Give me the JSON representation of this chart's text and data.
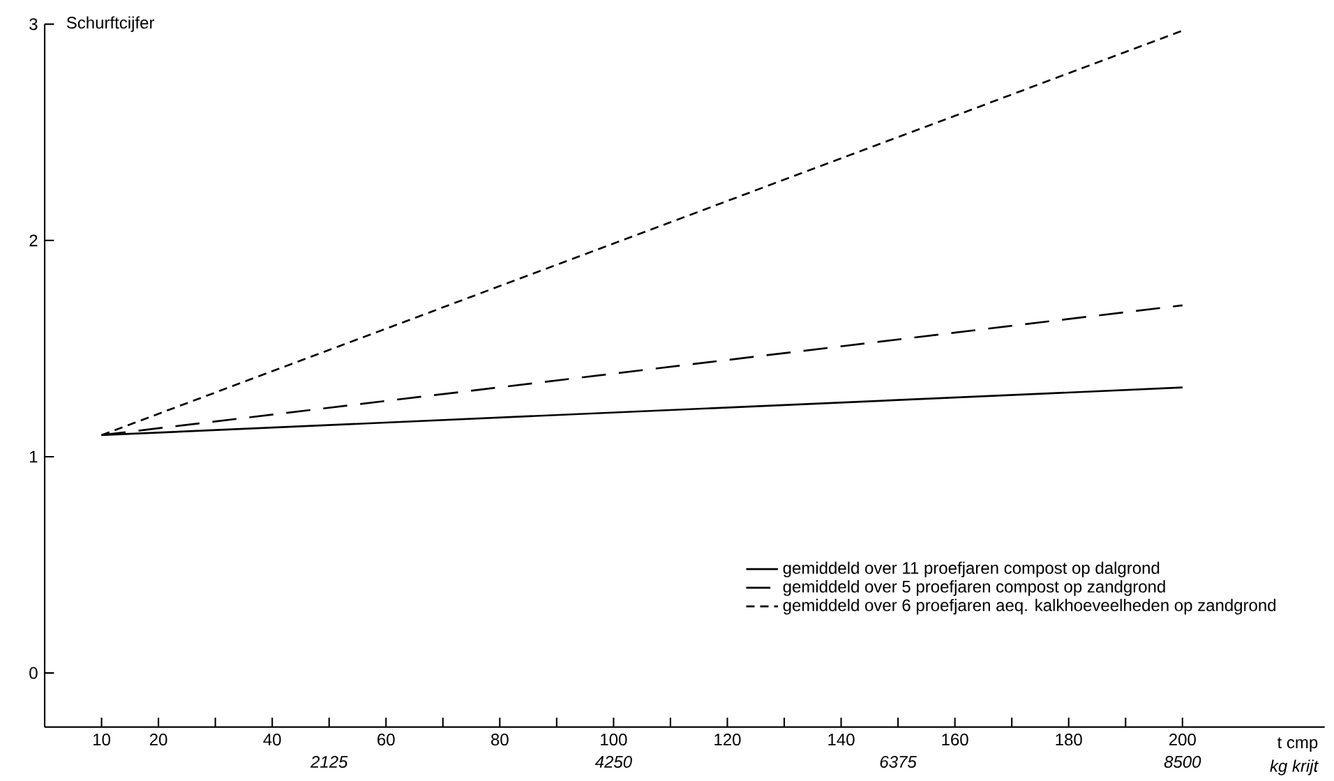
{
  "chart_data": {
    "type": "line",
    "ylabel": "Schurftcijfer",
    "xlabel": "t cmp",
    "x2label": "kg krijt",
    "x": [
      10,
      200
    ],
    "series": [
      {
        "name": "gemiddeld over 11 proefjaren compost op dalgrond",
        "color": "#000000",
        "line_style": "solid",
        "values": [
          1.1,
          1.32
        ]
      },
      {
        "name": "gemiddeld over 5 proefjaren compost op zandgrond",
        "color": "#000000",
        "line_style": "long dashed",
        "values": [
          1.1,
          1.7
        ]
      },
      {
        "name": "gemiddeld over 6 proefjaren aeq. kalkhoeveelheden op zandgrond",
        "color": "#000000",
        "line_style": "dashed",
        "values": [
          1.1,
          2.97
        ]
      }
    ],
    "xlim": [
      0,
      225
    ],
    "ylim": [
      -0.25,
      3
    ],
    "xticks": [
      10,
      20,
      {
        "value": 30,
        "label": null
      },
      40,
      {
        "value": 50,
        "label": null
      },
      60,
      {
        "value": 70,
        "label": null
      },
      80,
      {
        "value": 90,
        "label": null
      },
      100,
      {
        "value": 110,
        "label": null
      },
      120,
      {
        "value": 130,
        "label": null
      },
      140,
      {
        "value": 150,
        "label": null
      },
      160,
      {
        "value": 170,
        "label": null
      },
      180,
      {
        "value": 190,
        "label": null
      },
      200
    ],
    "yticks": [
      0,
      1,
      2,
      3
    ],
    "x2lim": [
      0,
      9562.5
    ],
    "x2ticks": [
      2125,
      4250,
      6375,
      8500
    ],
    "legend": "bottom right",
    "grid": false,
    "marker": "none"
  }
}
